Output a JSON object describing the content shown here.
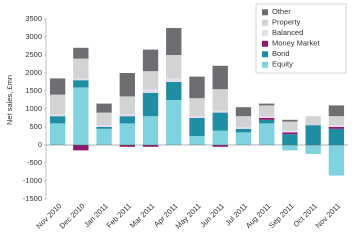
{
  "chart_data": {
    "type": "stacked-bar",
    "y_label": "Net sales, £mn",
    "categories": [
      "Nov 2010",
      "Dec 2010",
      "Jan 2011",
      "Feb 2011",
      "Mar 2011",
      "Apr 2011",
      "May 2011",
      "Jun 2011",
      "Jul 2011",
      "Aug 2011",
      "Sep 2011",
      "Oct 2011",
      "Nov 2011"
    ],
    "series": [
      {
        "name": "Equity",
        "color": "#7fd3df",
        "values": [
          600,
          1600,
          450,
          600,
          800,
          1250,
          250,
          400,
          350,
          600,
          -150,
          -250,
          -850
        ]
      },
      {
        "name": "Bond",
        "color": "#1f8ea3",
        "values": [
          200,
          200,
          50,
          200,
          650,
          500,
          500,
          500,
          100,
          100,
          300,
          550,
          450
        ]
      },
      {
        "name": "Money Market",
        "color": "#8b1a6b",
        "values": [
          0,
          -150,
          0,
          -50,
          -50,
          0,
          0,
          -50,
          0,
          50,
          50,
          0,
          50
        ]
      },
      {
        "name": "Balanced",
        "color": "#e6dcec",
        "values": [
          50,
          50,
          50,
          50,
          100,
          100,
          50,
          50,
          50,
          50,
          50,
          0,
          50
        ]
      },
      {
        "name": "Property",
        "color": "#d1d3d4",
        "values": [
          550,
          550,
          350,
          500,
          500,
          650,
          500,
          600,
          300,
          300,
          250,
          250,
          250
        ]
      },
      {
        "name": "Other",
        "color": "#6d6e71",
        "values": [
          450,
          300,
          250,
          650,
          600,
          750,
          600,
          650,
          250,
          50,
          50,
          0,
          300
        ]
      }
    ],
    "ylim": [
      -1500,
      3500
    ],
    "yticks": [
      -1500,
      -1000,
      -500,
      0,
      500,
      1000,
      1500,
      2000,
      2500,
      3000,
      3500
    ],
    "grid": false,
    "legend": "top-right"
  }
}
